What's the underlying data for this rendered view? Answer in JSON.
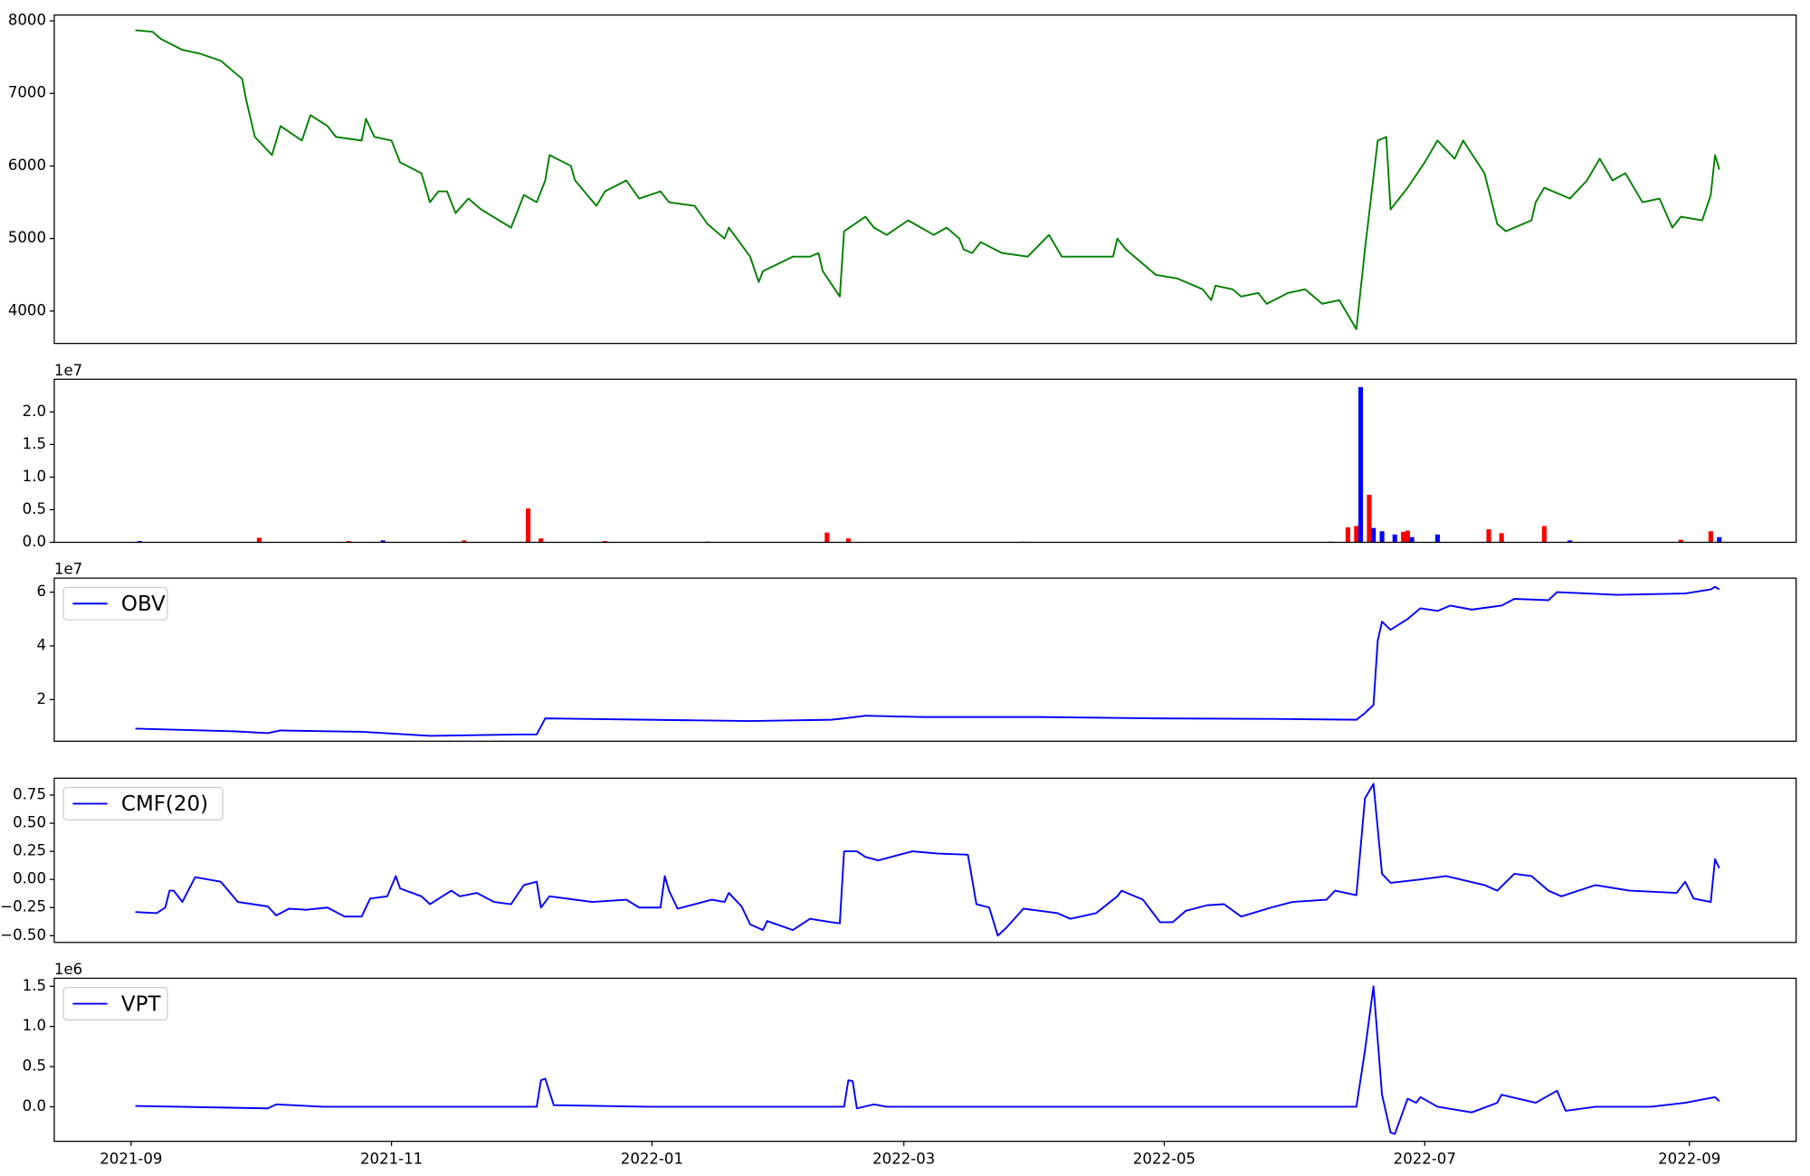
{
  "chart_data": [
    {
      "type": "line",
      "color": "#008000",
      "xlim": [
        -18,
        390
      ],
      "ylim": [
        3554,
        8080
      ],
      "yticks": [
        4000,
        5000,
        6000,
        7000,
        8000
      ],
      "x": [
        1,
        5,
        7,
        12,
        16,
        21,
        24,
        26,
        27,
        29,
        33,
        35,
        40,
        42,
        46,
        48,
        54,
        55,
        57,
        61,
        63,
        68,
        70,
        72,
        74,
        76,
        79,
        82,
        89,
        92,
        95,
        97,
        98,
        103,
        104,
        109,
        111,
        116,
        119,
        124,
        126,
        132,
        135,
        139,
        140,
        145,
        147,
        148,
        155,
        159,
        161,
        162,
        166,
        167,
        172,
        174,
        177,
        182,
        188,
        191,
        194,
        195,
        197,
        199,
        204,
        210,
        215,
        218,
        223,
        230,
        231,
        233,
        237,
        240,
        245,
        251,
        253,
        254,
        258,
        260,
        264,
        266,
        271,
        275,
        279,
        283,
        287,
        289,
        292,
        294,
        295,
        299,
        303,
        306,
        310,
        312,
        317,
        320,
        322,
        328,
        329,
        331,
        337,
        341,
        344,
        347,
        350,
        354,
        358,
        361,
        363,
        368,
        370,
        371,
        372
      ],
      "values": [
        7870,
        7850,
        7750,
        7600,
        7550,
        7450,
        7300,
        7200,
        6900,
        6400,
        6150,
        6550,
        6350,
        6700,
        6550,
        6400,
        6350,
        6650,
        6400,
        6350,
        6050,
        5900,
        5500,
        5650,
        5650,
        5350,
        5550,
        5400,
        5150,
        5600,
        5500,
        5800,
        6150,
        6000,
        5800,
        5450,
        5650,
        5800,
        5550,
        5650,
        5500,
        5450,
        5200,
        5000,
        5150,
        4750,
        4400,
        4550,
        4750,
        4750,
        4800,
        4550,
        4200,
        5100,
        5300,
        5150,
        5050,
        5250,
        5050,
        5150,
        5000,
        4850,
        4800,
        4950,
        4800,
        4750,
        5050,
        4750,
        4750,
        4750,
        5000,
        4850,
        4650,
        4500,
        4450,
        4300,
        4150,
        4350,
        4300,
        4200,
        4250,
        4100,
        4250,
        4300,
        4100,
        4150,
        3750,
        4850,
        6350,
        6400,
        5400,
        5700,
        6050,
        6350,
        6100,
        6350,
        5900,
        5200,
        5100,
        5250,
        5500,
        5700,
        5550,
        5800,
        6100,
        5800,
        5900,
        5500,
        5550,
        5150,
        5300,
        5250,
        5600,
        6150,
        5950
      ]
    },
    {
      "type": "bar",
      "offset_text": "1e7",
      "xlim": [
        -18,
        390
      ],
      "ylim": [
        0,
        2.5
      ],
      "yticks": [
        {
          "value": 0,
          "label": "0.0"
        },
        0.5,
        {
          "value": 1,
          "label": "1.0"
        },
        1.5,
        {
          "value": 2,
          "label": "2.0"
        }
      ],
      "x": [
        2,
        30,
        51,
        59,
        78,
        93,
        96,
        111,
        135,
        163,
        168,
        209,
        281,
        285,
        287,
        288,
        290,
        291,
        293,
        296,
        298,
        299,
        300,
        306,
        318,
        321,
        331,
        337,
        363,
        370,
        372
      ],
      "values": [
        0.02,
        0.07,
        0.02,
        0.03,
        0.03,
        0.52,
        0.06,
        0.02,
        0.01,
        0.15,
        0.06,
        0.01,
        0.01,
        0.23,
        0.25,
        2.38,
        0.73,
        0.22,
        0.17,
        0.12,
        0.16,
        0.18,
        0.08,
        0.12,
        0.2,
        0.14,
        0.25,
        0.03,
        0.04,
        0.17,
        0.08
      ],
      "colors": [
        "#0000ff",
        "#ff0000",
        "#ff0000",
        "#0000ff",
        "#ff0000",
        "#ff0000",
        "#ff0000",
        "#ff0000",
        "#0000ff",
        "#ff0000",
        "#ff0000",
        "#ff0000",
        "#0000ff",
        "#ff0000",
        "#ff0000",
        "#0000ff",
        "#ff0000",
        "#0000ff",
        "#0000ff",
        "#0000ff",
        "#ff0000",
        "#ff0000",
        "#0000ff",
        "#0000ff",
        "#ff0000",
        "#ff0000",
        "#ff0000",
        "#0000ff",
        "#ff0000",
        "#ff0000",
        "#0000ff"
      ]
    },
    {
      "type": "line",
      "offset_text": "1e7",
      "legend": "upper left",
      "xlim": [
        -18,
        390
      ],
      "ylim": [
        0.45,
        6.52
      ],
      "yticks": [
        2,
        4,
        6
      ],
      "x": [
        1,
        24,
        32,
        35,
        54,
        70,
        82,
        91,
        95,
        97,
        121,
        145,
        164,
        167,
        172,
        186,
        213,
        240,
        267,
        287,
        289,
        291,
        292,
        293,
        295,
        297,
        299,
        302,
        306,
        309,
        314,
        321,
        324,
        332,
        334,
        348,
        364,
        370,
        371,
        372
      ],
      "series": [
        {
          "name": "OBV",
          "color": "#0000ff",
          "values": [
            0.92,
            0.82,
            0.75,
            0.85,
            0.8,
            0.65,
            0.68,
            0.7,
            0.7,
            1.3,
            1.25,
            1.2,
            1.25,
            1.3,
            1.4,
            1.35,
            1.35,
            1.3,
            1.28,
            1.25,
            1.5,
            1.8,
            4.2,
            4.9,
            4.6,
            4.8,
            5.0,
            5.4,
            5.3,
            5.5,
            5.35,
            5.5,
            5.75,
            5.7,
            6.0,
            5.9,
            5.95,
            6.1,
            6.2,
            6.1
          ]
        }
      ]
    },
    {
      "type": "line",
      "legend": "upper left",
      "xlim": [
        -18,
        390
      ],
      "ylim": [
        -0.56,
        0.9
      ],
      "yticks": [
        {
          "value": -0.5,
          "label": "−0.50"
        },
        {
          "value": -0.25,
          "label": "−0.25"
        },
        {
          "value": 0,
          "label": "0.00"
        },
        {
          "value": 0.25,
          "label": "0.25"
        },
        {
          "value": 0.5,
          "label": "0.50"
        },
        {
          "value": 0.75,
          "label": "0.75"
        }
      ],
      "x": [
        1,
        6,
        8,
        9,
        10,
        12,
        15,
        21,
        25,
        32,
        34,
        37,
        41,
        46,
        50,
        54,
        56,
        60,
        62,
        63,
        68,
        70,
        75,
        77,
        81,
        85,
        89,
        92,
        95,
        96,
        98,
        108,
        116,
        119,
        124,
        125,
        126,
        128,
        132,
        136,
        139,
        140,
        143,
        145,
        148,
        149,
        155,
        159,
        164,
        166,
        167,
        170,
        172,
        175,
        178,
        183,
        189,
        196,
        198,
        201,
        203,
        205,
        209,
        217,
        220,
        226,
        231,
        232,
        237,
        241,
        244,
        247,
        252,
        256,
        260,
        267,
        272,
        280,
        282,
        287,
        289,
        291,
        293,
        295,
        302,
        308,
        317,
        320,
        324,
        328,
        332,
        335,
        343,
        351,
        362,
        364,
        366,
        370,
        371,
        372
      ],
      "series": [
        {
          "name": "CMF(20)",
          "color": "#0000ff",
          "values": [
            -0.29,
            -0.3,
            -0.25,
            -0.1,
            -0.1,
            -0.2,
            0.02,
            -0.02,
            -0.2,
            -0.24,
            -0.32,
            -0.26,
            -0.27,
            -0.25,
            -0.33,
            -0.33,
            -0.17,
            -0.15,
            0.03,
            -0.08,
            -0.15,
            -0.22,
            -0.1,
            -0.15,
            -0.12,
            -0.2,
            -0.22,
            -0.05,
            -0.02,
            -0.25,
            -0.15,
            -0.2,
            -0.18,
            -0.25,
            -0.25,
            0.03,
            -0.1,
            -0.26,
            -0.22,
            -0.18,
            -0.2,
            -0.12,
            -0.24,
            -0.4,
            -0.45,
            -0.37,
            -0.45,
            -0.35,
            -0.38,
            -0.39,
            0.25,
            0.25,
            0.2,
            0.17,
            0.2,
            0.25,
            0.23,
            0.22,
            -0.22,
            -0.25,
            -0.5,
            -0.43,
            -0.26,
            -0.3,
            -0.35,
            -0.3,
            -0.15,
            -0.1,
            -0.18,
            -0.38,
            -0.38,
            -0.28,
            -0.23,
            -0.22,
            -0.33,
            -0.25,
            -0.2,
            -0.18,
            -0.1,
            -0.14,
            0.72,
            0.85,
            0.05,
            -0.03,
            0,
            0.03,
            -0.05,
            -0.1,
            0.05,
            0.03,
            -0.1,
            -0.15,
            -0.05,
            -0.1,
            -0.12,
            -0.02,
            -0.17,
            -0.2,
            0.18,
            0.1
          ]
        }
      ]
    },
    {
      "type": "line",
      "offset_text": "1e6",
      "legend": "upper left",
      "xlim": [
        -18,
        390
      ],
      "ylim": [
        -0.43,
        1.6
      ],
      "yticks": [
        {
          "value": 0,
          "label": "0.0"
        },
        0.5,
        {
          "value": 1,
          "label": "1.0"
        },
        1.5
      ],
      "xticks": [
        {
          "value": 0,
          "label": "2021-09"
        },
        {
          "value": 61,
          "label": "2021-11"
        },
        {
          "value": 122,
          "label": "2022-01"
        },
        {
          "value": 181,
          "label": "2022-03"
        },
        {
          "value": 242,
          "label": "2022-05"
        },
        {
          "value": 303,
          "label": "2022-07"
        },
        {
          "value": 365,
          "label": "2022-09"
        }
      ],
      "x": [
        1,
        32,
        34,
        45,
        78,
        95,
        96,
        97,
        99,
        121,
        159,
        167,
        168,
        169,
        170,
        174,
        177,
        213,
        267,
        287,
        289,
        291,
        293,
        295,
        296,
        299,
        301,
        302,
        306,
        314,
        320,
        321,
        329,
        334,
        336,
        343,
        356,
        364,
        371,
        372
      ],
      "series": [
        {
          "name": "VPT",
          "color": "#0000ff",
          "values": [
            0.01,
            -0.02,
            0.03,
            0,
            0,
            0,
            0.33,
            0.35,
            0.02,
            0,
            0,
            0,
            0.33,
            0.32,
            -0.02,
            0.03,
            0,
            0,
            0,
            0,
            0.7,
            1.5,
            0.15,
            -0.32,
            -0.34,
            0.1,
            0.05,
            0.12,
            0,
            -0.07,
            0.05,
            0.15,
            0.05,
            0.2,
            -0.05,
            0,
            0,
            0.05,
            0.12,
            0.07
          ]
        }
      ]
    }
  ]
}
